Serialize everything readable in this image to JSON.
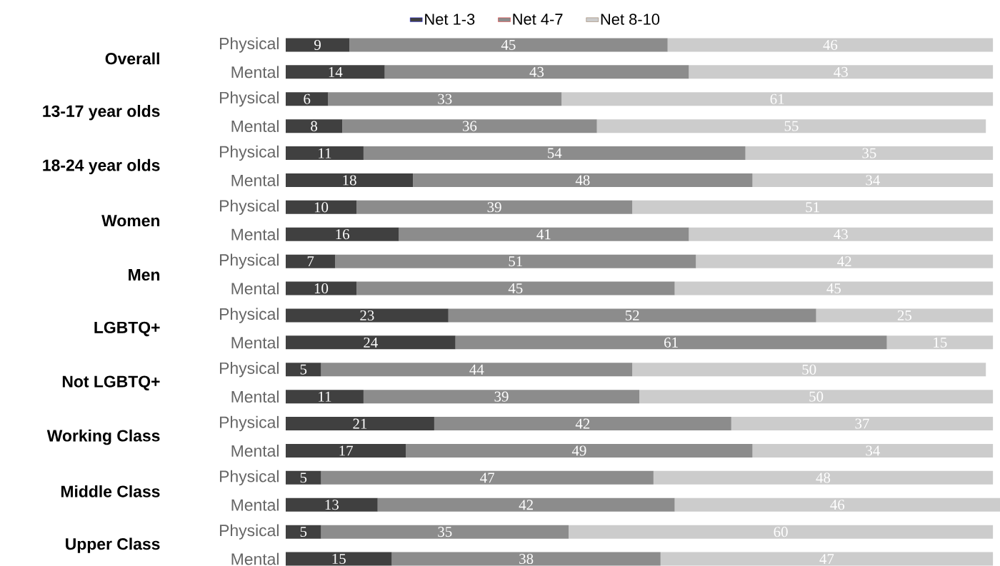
{
  "chart_data": {
    "type": "bar",
    "orientation": "horizontal",
    "stacked": true,
    "data_labels": true,
    "legend": "top",
    "categories": [
      "Physical",
      "Mental",
      "Physical",
      "Mental",
      "Physical",
      "Mental",
      "Physical",
      "Mental",
      "Physical",
      "Mental",
      "Physical",
      "Mental",
      "Physical",
      "Mental",
      "Physical",
      "Mental",
      "Physical",
      "Mental",
      "Physical",
      "Mental"
    ],
    "annotations": [
      "Overall",
      "13-17 year olds",
      "18-24 year olds",
      "Women",
      "Men",
      "LGBTQ+",
      "Not LGBTQ+",
      "Working Class",
      "Middle Class",
      "Upper Class"
    ],
    "series": [
      {
        "name": "Net 1-3",
        "color": "#404040",
        "values": [
          9,
          14,
          6,
          8,
          11,
          18,
          10,
          16,
          7,
          10,
          23,
          24,
          5,
          11,
          21,
          17,
          5,
          13,
          5,
          15
        ]
      },
      {
        "name": "Net 4-7",
        "color": "#8c8c8c",
        "values": [
          45,
          43,
          33,
          36,
          54,
          48,
          39,
          41,
          51,
          45,
          52,
          61,
          44,
          39,
          42,
          49,
          47,
          42,
          35,
          38
        ]
      },
      {
        "name": "Net 8-10",
        "color": "#cccccc",
        "values": [
          46,
          43,
          61,
          55,
          35,
          34,
          51,
          43,
          42,
          45,
          25,
          15,
          50,
          50,
          37,
          34,
          48,
          46,
          60,
          47
        ]
      }
    ]
  }
}
